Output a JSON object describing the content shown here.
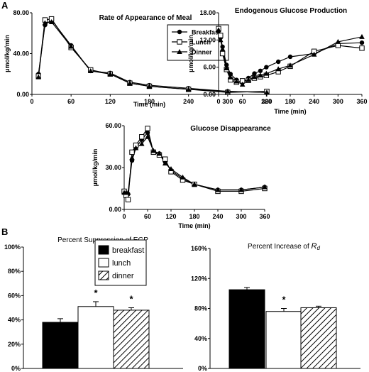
{
  "panel_labels": [
    "A",
    "B"
  ],
  "chart_data": [
    {
      "type": "line",
      "title": "Rate of Appearance of Meal",
      "xlabel": "Time (min)",
      "ylabel": "µmol/kg/min",
      "xlim": [
        0,
        360
      ],
      "ylim": [
        0,
        80
      ],
      "xticks": [
        "0",
        "60",
        "120",
        "180",
        "240",
        "300",
        "360"
      ],
      "yticks": [
        "0.00",
        "40.00",
        "80.00"
      ],
      "legend_position": "top-right",
      "x": [
        10,
        20,
        30,
        60,
        90,
        120,
        150,
        180,
        240,
        300,
        360
      ],
      "series": [
        {
          "name": "Breakfast",
          "marker": "circle",
          "values": [
            20,
            68,
            73,
            48,
            23,
            21,
            12,
            9,
            6,
            3,
            2
          ]
        },
        {
          "name": "Lunch",
          "marker": "square",
          "values": [
            18,
            73,
            74,
            46,
            24,
            20,
            11,
            8,
            5,
            2,
            3
          ]
        },
        {
          "name": "Dinner",
          "marker": "triangle",
          "values": [
            17,
            70,
            71,
            47,
            23,
            20,
            11,
            8,
            5,
            3,
            2
          ]
        }
      ]
    },
    {
      "type": "line",
      "title": "Endogenous Glucose Production",
      "xlabel": "Time (min)",
      "ylabel": "µmol/kg/min",
      "xlim": [
        0,
        360
      ],
      "ylim": [
        0,
        18
      ],
      "xticks": [
        "0",
        "60",
        "120",
        "180",
        "240",
        "300",
        "360"
      ],
      "yticks": [
        "0.00",
        "6.00",
        "12.00",
        "18.00"
      ],
      "x": [
        0,
        5,
        10,
        20,
        30,
        45,
        60,
        75,
        90,
        105,
        120,
        150,
        180,
        240,
        300,
        360
      ],
      "series": [
        {
          "name": "Breakfast",
          "marker": "circle",
          "values": [
            14.0,
            12.5,
            10.5,
            6.5,
            4.5,
            3.2,
            2.6,
            3.6,
            4.6,
            5.2,
            6.0,
            7.2,
            8.3,
            9.0,
            11.2,
            11.4
          ]
        },
        {
          "name": "Lunch",
          "marker": "square",
          "values": [
            14.5,
            13.0,
            9.0,
            5.5,
            3.2,
            2.7,
            3.0,
            3.1,
            3.6,
            3.9,
            4.2,
            5.0,
            6.2,
            9.5,
            10.8,
            10.2
          ]
        },
        {
          "name": "Dinner",
          "marker": "triangle",
          "values": [
            14.2,
            12.0,
            10.0,
            5.8,
            3.8,
            2.9,
            2.2,
            3.2,
            3.9,
            4.2,
            4.6,
            5.6,
            6.4,
            8.8,
            11.6,
            12.7
          ]
        }
      ]
    },
    {
      "type": "line",
      "title": "Glucose Disappearance",
      "xlabel": "Time (min)",
      "ylabel": "µmol/kg/min",
      "xlim": [
        0,
        360
      ],
      "ylim": [
        0,
        60
      ],
      "xticks": [
        "0",
        "60",
        "120",
        "180",
        "240",
        "300",
        "360"
      ],
      "yticks": [
        "0.00",
        "30.00",
        "60.00"
      ],
      "x": [
        0,
        5,
        10,
        20,
        30,
        45,
        60,
        75,
        90,
        105,
        120,
        150,
        180,
        240,
        300,
        360
      ],
      "series": [
        {
          "name": "Breakfast",
          "marker": "circle",
          "values": [
            13,
            11,
            11,
            35,
            44,
            50,
            55,
            41,
            40,
            34,
            28,
            22,
            18,
            14,
            14,
            16
          ]
        },
        {
          "name": "Lunch",
          "marker": "square",
          "values": [
            13,
            10,
            7,
            41,
            46,
            52,
            58,
            41,
            39,
            36,
            27,
            21,
            18,
            13,
            13,
            15
          ]
        },
        {
          "name": "Dinner",
          "marker": "triangle",
          "values": [
            12,
            12,
            12,
            37,
            44,
            47,
            52,
            42,
            40,
            33,
            29,
            23,
            18,
            14,
            14,
            16
          ]
        }
      ]
    },
    {
      "type": "bar",
      "title": "Percent Suppression of EGP",
      "ylim": [
        0,
        100
      ],
      "yticks": [
        "0%",
        "20%",
        "40%",
        "60%",
        "80%",
        "100%"
      ],
      "categories": [
        "breakfast",
        "lunch",
        "dinner"
      ],
      "values": [
        38,
        51,
        48
      ],
      "errors": [
        3,
        4,
        2
      ],
      "significance": [
        "",
        "*",
        "*"
      ],
      "legend": [
        "breakfast",
        "lunch",
        "dinner"
      ],
      "legend_position": "top-center"
    },
    {
      "type": "bar",
      "title_parts": [
        "Percent Increase of ",
        "R",
        "d"
      ],
      "ylim": [
        0,
        160
      ],
      "yticks": [
        "0%",
        "40%",
        "80%",
        "120%",
        "160%"
      ],
      "categories": [
        "breakfast",
        "lunch",
        "dinner"
      ],
      "values": [
        105,
        76,
        81
      ],
      "errors": [
        3,
        4,
        2
      ],
      "significance": [
        "",
        "*",
        ""
      ]
    }
  ]
}
